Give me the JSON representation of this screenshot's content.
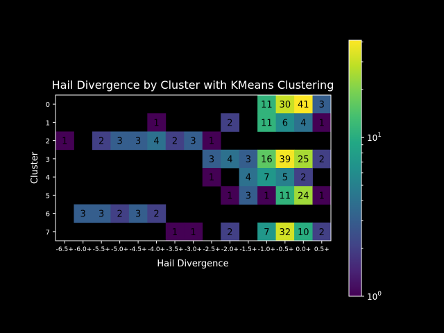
{
  "chart_data": {
    "type": "heatmap",
    "title": "Hail Divergence by Cluster with KMeans Clustering",
    "xlabel": "Hail Divergence",
    "ylabel": "Cluster",
    "x_categories": [
      "-6.5+",
      "-6.0+",
      "-5.5+",
      "-5.0+",
      "-4.5+",
      "-4.0+",
      "-3.5+",
      "-3.0+",
      "-2.5+",
      "-2.0+",
      "-1.5+",
      "-1.0+",
      "-0.5+",
      "0.0+",
      "0.5+"
    ],
    "y_categories": [
      "0",
      "1",
      "2",
      "3",
      "4",
      "5",
      "6",
      "7"
    ],
    "values": [
      [
        null,
        null,
        null,
        null,
        null,
        null,
        null,
        null,
        null,
        null,
        null,
        11,
        30,
        41,
        3
      ],
      [
        null,
        null,
        null,
        null,
        null,
        1,
        null,
        null,
        null,
        2,
        null,
        11,
        6,
        4,
        1
      ],
      [
        1,
        null,
        2,
        3,
        3,
        4,
        2,
        3,
        1,
        null,
        null,
        null,
        null,
        null,
        null
      ],
      [
        null,
        null,
        null,
        null,
        null,
        null,
        null,
        null,
        3,
        4,
        3,
        16,
        39,
        25,
        2
      ],
      [
        null,
        null,
        null,
        null,
        null,
        null,
        null,
        null,
        1,
        null,
        4,
        7,
        5,
        2,
        null
      ],
      [
        null,
        null,
        null,
        null,
        null,
        null,
        null,
        null,
        null,
        1,
        3,
        1,
        11,
        24,
        1
      ],
      [
        null,
        3,
        3,
        2,
        3,
        2,
        null,
        null,
        null,
        null,
        null,
        null,
        null,
        null,
        null
      ],
      [
        null,
        null,
        null,
        null,
        null,
        null,
        1,
        1,
        null,
        2,
        null,
        7,
        32,
        10,
        2
      ]
    ],
    "colorscale": "viridis",
    "color_scale_type": "log",
    "color_range": [
      1,
      41
    ],
    "colorbar_ticks": [
      "10",
      "10"
    ],
    "colorbar_tick_exponents": [
      "0",
      "1"
    ],
    "background": "#000000",
    "text_color": "#ffffff"
  }
}
